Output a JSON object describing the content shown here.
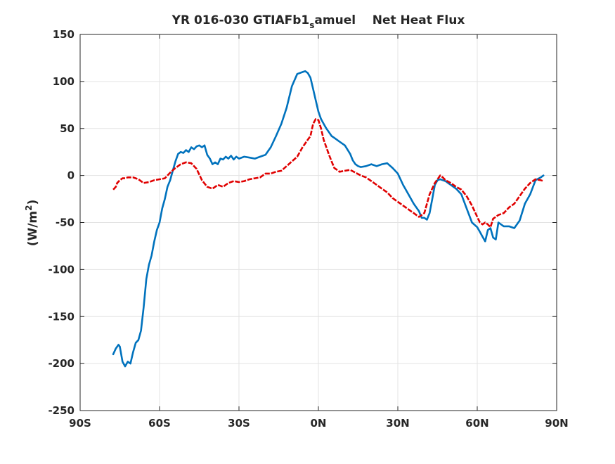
{
  "chart_data": {
    "type": "line",
    "title_main": "YR 016-030 GTIAFb1",
    "title_sub": "s",
    "title_rest": "amuel    Net Heat Flux",
    "ylabel_main": "(W/m",
    "ylabel_sup": "2",
    "ylabel_end": ")",
    "xlabel": "",
    "xlim": [
      -90,
      90
    ],
    "ylim": [
      -250,
      150
    ],
    "grid": true,
    "x_ticks": [
      -90,
      -60,
      -30,
      0,
      30,
      60,
      90
    ],
    "x_tick_labels": [
      "90S",
      "60S",
      "30S",
      "0N",
      "30N",
      "60N",
      "90N"
    ],
    "y_ticks": [
      -250,
      -200,
      -150,
      -100,
      -50,
      0,
      50,
      100,
      150
    ],
    "y_tick_labels": [
      "-250",
      "-200",
      "-150",
      "-100",
      "-50",
      "0",
      "50",
      "100",
      "150"
    ],
    "series": [
      {
        "color": "#0072bd",
        "dash": "solid",
        "x": [
          -77.5,
          -76.5,
          -75.5,
          -75,
          -74,
          -73,
          -72,
          -71,
          -70,
          -69,
          -68,
          -67,
          -66,
          -65,
          -64,
          -63,
          -62,
          -61,
          -60,
          -59,
          -58,
          -57,
          -56,
          -55,
          -54,
          -53,
          -52,
          -51,
          -50,
          -49,
          -48,
          -47,
          -46,
          -45,
          -44,
          -43,
          -42,
          -41,
          -40,
          -39,
          -38,
          -37,
          -36,
          -35,
          -34,
          -33,
          -32,
          -31,
          -30,
          -28,
          -26,
          -24,
          -22,
          -20,
          -18,
          -16,
          -14,
          -12,
          -10,
          -8,
          -6,
          -5,
          -4,
          -3,
          -2,
          -1,
          0,
          1,
          2,
          3,
          4,
          5,
          6,
          8,
          10,
          12,
          13,
          14,
          15,
          16,
          18,
          20,
          22,
          24,
          26,
          28,
          30,
          32,
          34,
          36,
          38,
          39,
          40,
          41,
          42,
          43,
          44,
          45,
          46,
          47,
          48,
          50,
          52,
          54,
          56,
          58,
          60,
          61,
          62,
          63,
          64,
          65,
          66,
          67,
          68,
          70,
          72,
          74,
          76,
          78,
          80,
          82,
          84,
          85
        ],
        "y": [
          -190,
          -184,
          -180,
          -182,
          -198,
          -203,
          -198,
          -200,
          -188,
          -178,
          -175,
          -165,
          -140,
          -110,
          -95,
          -85,
          -70,
          -58,
          -50,
          -35,
          -25,
          -12,
          -5,
          5,
          15,
          23,
          25,
          24,
          27,
          25,
          30,
          28,
          31,
          32,
          30,
          32,
          22,
          18,
          12,
          14,
          12,
          18,
          17,
          20,
          18,
          21,
          17,
          20,
          18,
          20,
          19,
          18,
          20,
          22,
          30,
          42,
          55,
          72,
          95,
          108,
          110,
          111,
          109,
          104,
          92,
          80,
          68,
          60,
          55,
          50,
          46,
          42,
          40,
          36,
          32,
          23,
          16,
          12,
          10,
          9,
          10,
          12,
          10,
          12,
          13,
          8,
          2,
          -10,
          -20,
          -30,
          -38,
          -45,
          -45,
          -47,
          -40,
          -25,
          -10,
          -5,
          -4,
          -5,
          -6,
          -10,
          -14,
          -20,
          -35,
          -50,
          -55,
          -60,
          -65,
          -70,
          -58,
          -56,
          -66,
          -68,
          -50,
          -54,
          -54,
          -56,
          -48,
          -30,
          -20,
          -5,
          -2,
          0
        ]
      },
      {
        "color": "#e00000",
        "dash": "dashed",
        "x": [
          -77.5,
          -76.5,
          -76,
          -75,
          -74,
          -73,
          -72,
          -71,
          -70,
          -69,
          -68,
          -66,
          -64,
          -62,
          -60,
          -58,
          -56,
          -54,
          -52,
          -50,
          -48,
          -46,
          -44,
          -42,
          -40,
          -38,
          -36,
          -34,
          -32,
          -30,
          -28,
          -26,
          -24,
          -22,
          -20,
          -18,
          -16,
          -14,
          -12,
          -10,
          -8,
          -6,
          -4,
          -3,
          -2,
          -1,
          0,
          1,
          2,
          3,
          4,
          5,
          6,
          7,
          8,
          10,
          12,
          14,
          16,
          18,
          20,
          22,
          24,
          26,
          28,
          30,
          32,
          34,
          36,
          38,
          40,
          42,
          44,
          45,
          46,
          47,
          48,
          50,
          52,
          54,
          56,
          58,
          60,
          61,
          62,
          63,
          64,
          65,
          66,
          67,
          68,
          70,
          72,
          74,
          76,
          78,
          80,
          82,
          84,
          85
        ],
        "y": [
          -15,
          -12,
          -8,
          -5,
          -3,
          -3,
          -2,
          -2,
          -2,
          -3,
          -4,
          -8,
          -7,
          -5,
          -4,
          -3,
          3,
          8,
          12,
          14,
          13,
          7,
          -5,
          -12,
          -14,
          -10,
          -12,
          -8,
          -6,
          -7,
          -6,
          -4,
          -3,
          -2,
          2,
          2,
          4,
          5,
          10,
          15,
          20,
          30,
          38,
          42,
          55,
          60,
          59,
          50,
          38,
          30,
          22,
          15,
          8,
          6,
          4,
          5,
          6,
          3,
          0,
          -2,
          -6,
          -10,
          -14,
          -18,
          -24,
          -28,
          -32,
          -36,
          -40,
          -44,
          -40,
          -20,
          -8,
          -4,
          0,
          -2,
          -5,
          -8,
          -12,
          -15,
          -22,
          -32,
          -44,
          -50,
          -52,
          -50,
          -52,
          -55,
          -46,
          -44,
          -42,
          -40,
          -34,
          -30,
          -22,
          -14,
          -8,
          -4,
          -5,
          -6
        ]
      }
    ]
  }
}
